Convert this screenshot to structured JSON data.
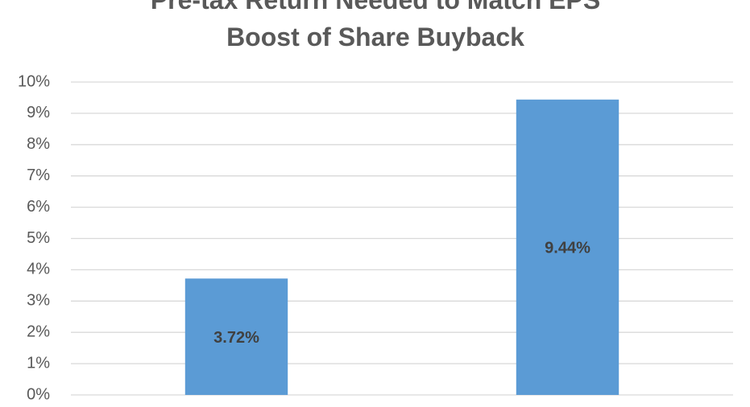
{
  "chart_data": {
    "type": "bar",
    "title": "Pre-tax Return Needed to Match EPS Boost of Share Buyback",
    "categories": [
      null,
      null
    ],
    "values": [
      3.72,
      9.44
    ],
    "value_labels": [
      "3.72%",
      "9.44%"
    ],
    "color": "#5b9bd5",
    "ylim": [
      0,
      10
    ],
    "yticks": [
      {
        "value": 0,
        "label": "0%"
      },
      {
        "value": 1,
        "label": "1%"
      },
      {
        "value": 2,
        "label": "2%"
      },
      {
        "value": 3,
        "label": "3%"
      },
      {
        "value": 4,
        "label": "4%"
      },
      {
        "value": 5,
        "label": "5%"
      },
      {
        "value": 6,
        "label": "6%"
      },
      {
        "value": 7,
        "label": "7%"
      },
      {
        "value": 8,
        "label": "8%"
      },
      {
        "value": 9,
        "label": "9%"
      },
      {
        "value": 10,
        "label": "10%"
      }
    ],
    "grid": true
  }
}
